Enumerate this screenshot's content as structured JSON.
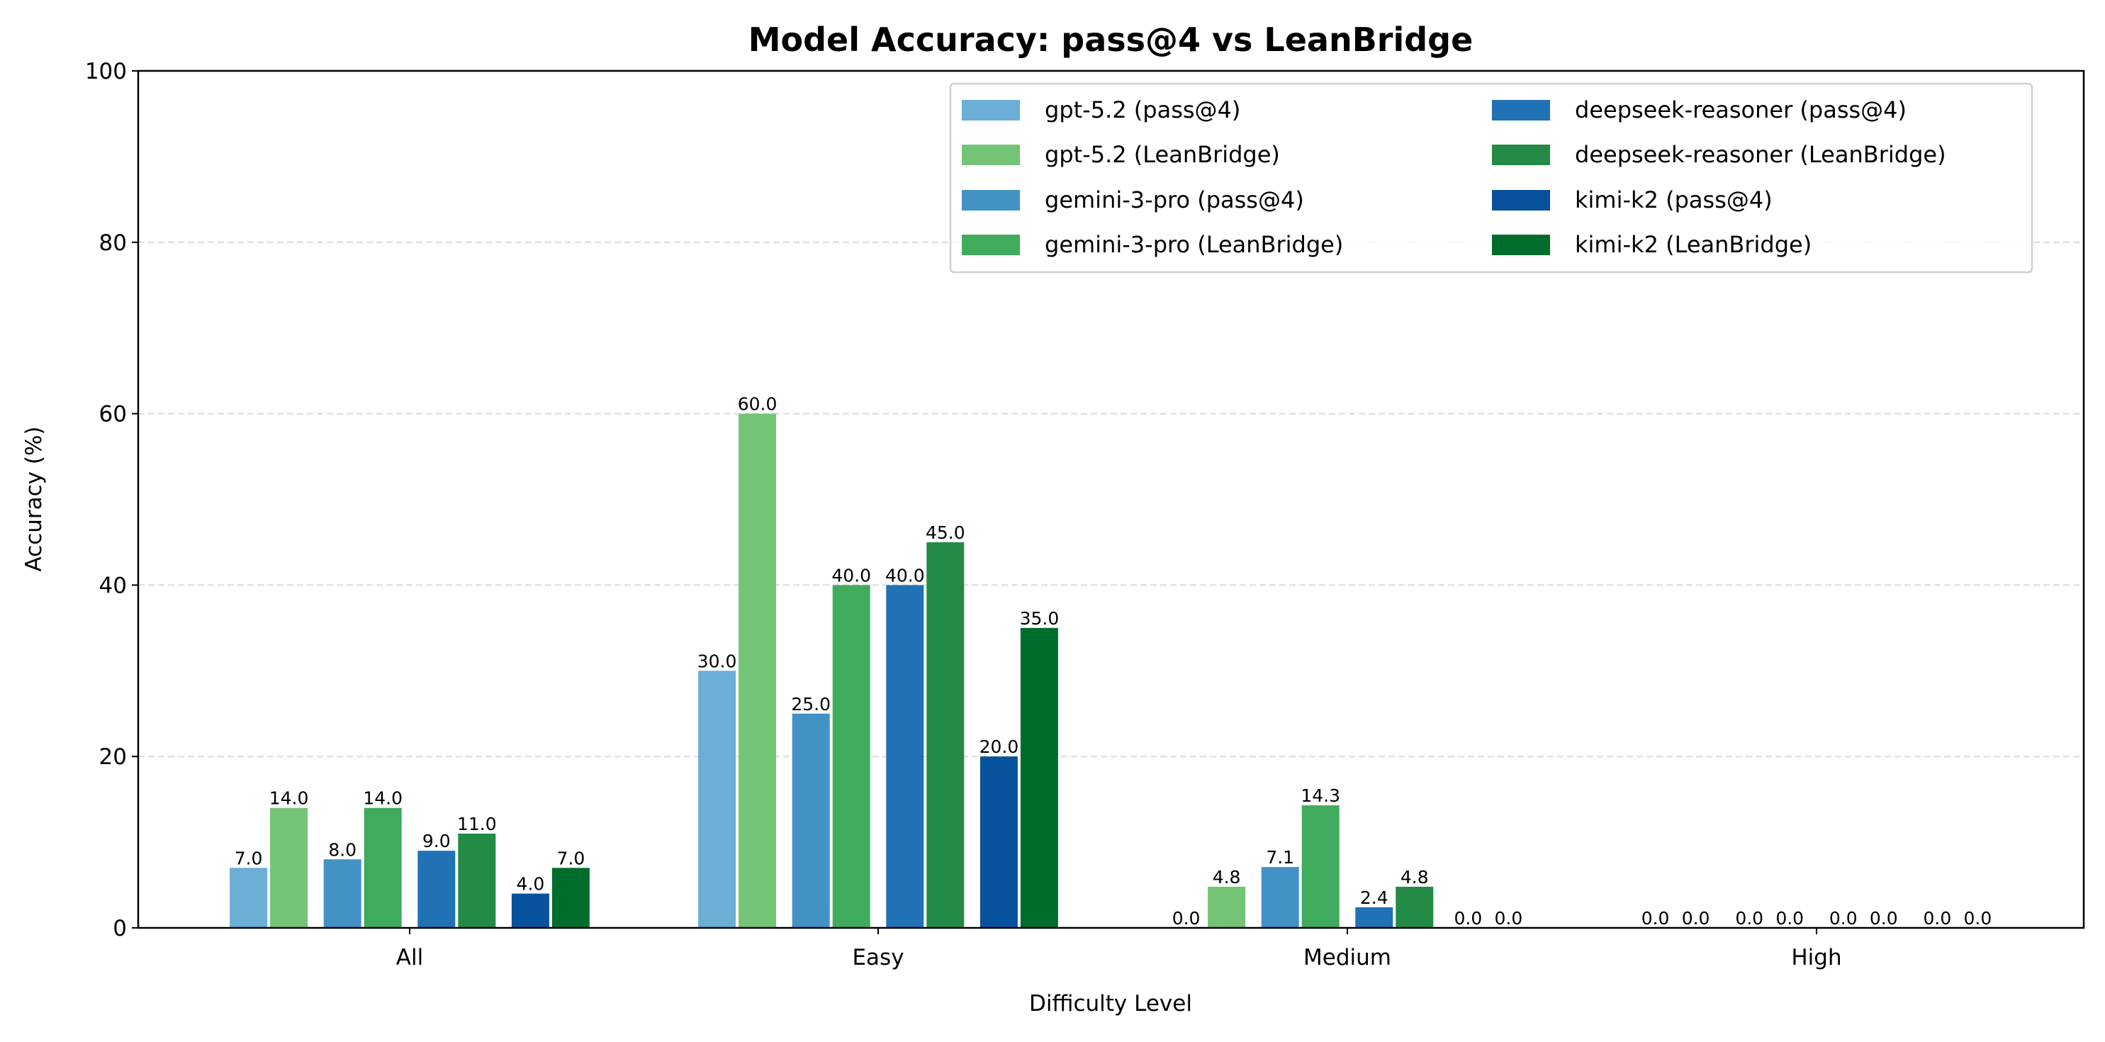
{
  "chart_data": {
    "type": "bar",
    "title": "Model Accuracy: pass@4 vs LeanBridge",
    "xlabel": "Difficulty Level",
    "ylabel": "Accuracy (%)",
    "ylim": [
      0,
      100
    ],
    "yticks": [
      "0",
      "20",
      "40",
      "60",
      "80",
      "100"
    ],
    "grid": "y dashed",
    "legend_placement": "top-right",
    "categories": [
      "All",
      "Easy",
      "Medium",
      "High"
    ],
    "series": [
      {
        "name": "gpt-5.2 (pass@4)",
        "color": "#6baed6",
        "values": [
          7.0,
          30.0,
          0.0,
          0.0
        ]
      },
      {
        "name": "gpt-5.2 (LeanBridge)",
        "color": "#74c476",
        "values": [
          14.0,
          60.0,
          4.8,
          0.0
        ]
      },
      {
        "name": "gemini-3-pro (pass@4)",
        "color": "#4292c6",
        "values": [
          8.0,
          25.0,
          7.1,
          0.0
        ]
      },
      {
        "name": "gemini-3-pro (LeanBridge)",
        "color": "#41ab5d",
        "values": [
          14.0,
          40.0,
          14.3,
          0.0
        ]
      },
      {
        "name": "deepseek-reasoner (pass@4)",
        "color": "#2171b5",
        "values": [
          9.0,
          40.0,
          2.4,
          0.0
        ]
      },
      {
        "name": "deepseek-reasoner (LeanBridge)",
        "color": "#238b45",
        "values": [
          11.0,
          45.0,
          4.8,
          0.0
        ]
      },
      {
        "name": "kimi-k2 (pass@4)",
        "color": "#08519c",
        "values": [
          4.0,
          20.0,
          0.0,
          0.0
        ]
      },
      {
        "name": "kimi-k2 (LeanBridge)",
        "color": "#006d2c",
        "values": [
          7.0,
          35.0,
          0.0,
          0.0
        ]
      }
    ]
  }
}
